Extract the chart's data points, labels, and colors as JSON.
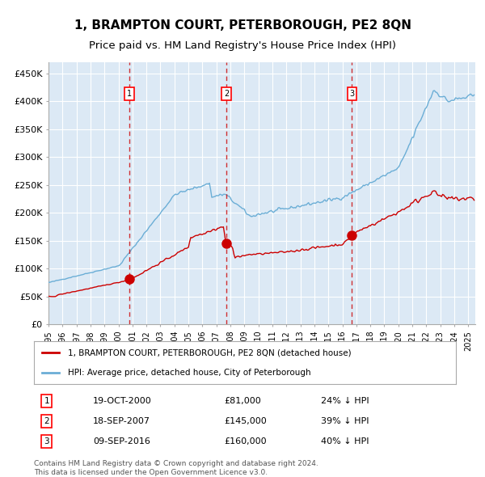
{
  "title": "1, BRAMPTON COURT, PETERBOROUGH, PE2 8QN",
  "subtitle": "Price paid vs. HM Land Registry's House Price Index (HPI)",
  "title_fontsize": 11,
  "subtitle_fontsize": 9.5,
  "background_color": "#ffffff",
  "plot_bg_color": "#dce9f5",
  "grid_color": "#ffffff",
  "hpi_color": "#6baed6",
  "price_color": "#cc0000",
  "sale_marker_color": "#cc0000",
  "dashed_line_color": "#cc0000",
  "purchases": [
    {
      "date_num": 2000.8,
      "price": 81000,
      "label": "1",
      "date_str": "19-OCT-2000"
    },
    {
      "date_num": 2007.72,
      "price": 145000,
      "label": "2",
      "date_str": "18-SEP-2007"
    },
    {
      "date_num": 2016.69,
      "price": 160000,
      "label": "3",
      "date_str": "09-SEP-2016"
    }
  ],
  "purchase_notes": [
    {
      "label": "1",
      "date": "19-OCT-2000",
      "price": "£81,000",
      "note": "24% ↓ HPI"
    },
    {
      "label": "2",
      "date": "18-SEP-2007",
      "price": "£145,000",
      "note": "39% ↓ HPI"
    },
    {
      "label": "3",
      "date": "09-SEP-2016",
      "price": "£160,000",
      "note": "40% ↓ HPI"
    }
  ],
  "xlim": [
    1995.0,
    2025.5
  ],
  "ylim": [
    0,
    470000
  ],
  "yticks": [
    0,
    50000,
    100000,
    150000,
    200000,
    250000,
    300000,
    350000,
    400000,
    450000
  ],
  "ytick_labels": [
    "£0",
    "£50K",
    "£100K",
    "£150K",
    "£200K",
    "£250K",
    "£300K",
    "£350K",
    "£400K",
    "£450K"
  ],
  "footer": "Contains HM Land Registry data © Crown copyright and database right 2024.\nThis data is licensed under the Open Government Licence v3.0.",
  "legend_entries": [
    "1, BRAMPTON COURT, PETERBOROUGH, PE2 8QN (detached house)",
    "HPI: Average price, detached house, City of Peterborough"
  ]
}
